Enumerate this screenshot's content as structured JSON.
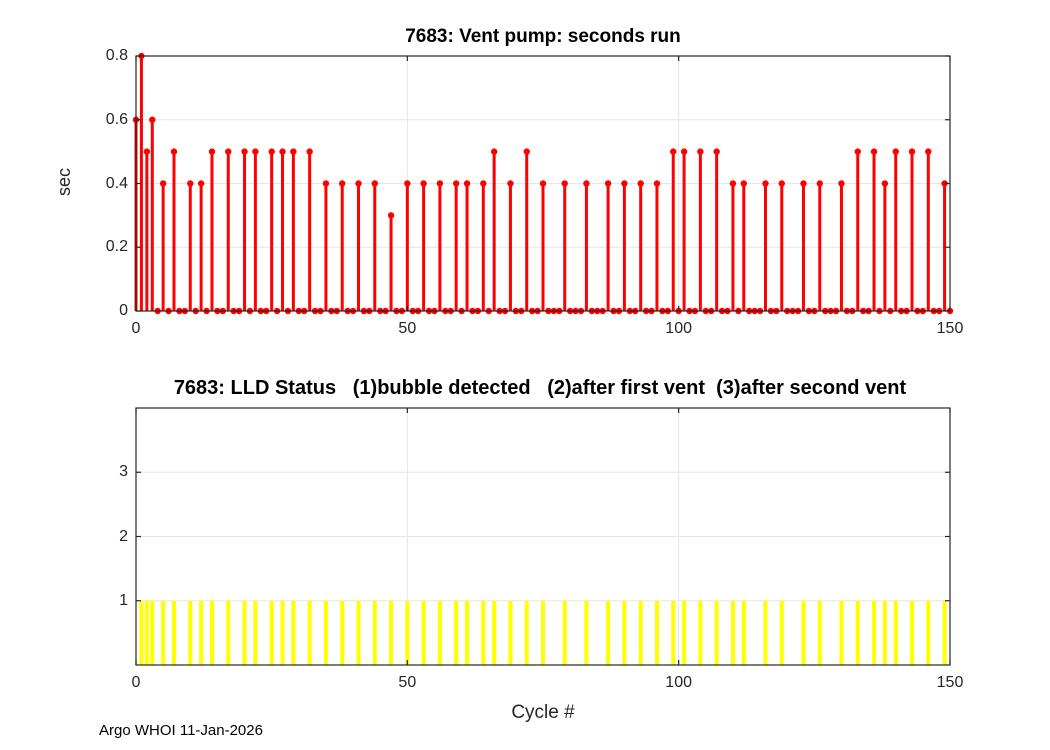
{
  "figure": {
    "background": "#ffffff",
    "footer_credit": "Argo WHOI 11-Jan-2026"
  },
  "style": {
    "axis_color": "#262626",
    "grid_color": "#e6e6e6",
    "tick_label_color": "#262626"
  },
  "chart_data": [
    {
      "id": "vent-pump",
      "type": "stem",
      "title": "7683: Vent pump: seconds run",
      "xlabel": "",
      "ylabel": "sec",
      "xlim": [
        0,
        150
      ],
      "ylim": [
        0,
        0.8
      ],
      "xticks": [
        0,
        50,
        100,
        150
      ],
      "yticks": [
        0,
        0.2,
        0.4,
        0.6,
        0.8
      ],
      "grid": true,
      "legend": "none",
      "color": "#ff0000",
      "x_equals_index": true,
      "y": [
        0.6,
        0.8,
        0.5,
        0.6,
        0,
        0.4,
        0,
        0.5,
        0,
        0,
        0.4,
        0,
        0.4,
        0,
        0.5,
        0,
        0,
        0.5,
        0,
        0,
        0.5,
        0,
        0.5,
        0,
        0,
        0.5,
        0,
        0.5,
        0,
        0.5,
        0,
        0,
        0.5,
        0,
        0,
        0.4,
        0,
        0,
        0.4,
        0,
        0,
        0.4,
        0,
        0,
        0.4,
        0,
        0,
        0.3,
        0,
        0,
        0.4,
        0,
        0,
        0.4,
        0,
        0,
        0.4,
        0,
        0,
        0.4,
        0,
        0.4,
        0,
        0,
        0.4,
        0,
        0.5,
        0,
        0,
        0.4,
        0,
        0,
        0.5,
        0,
        0,
        0.4,
        0,
        0,
        0,
        0.4,
        0,
        0,
        0,
        0.4,
        0,
        0,
        0,
        0.4,
        0,
        0,
        0.4,
        0,
        0,
        0.4,
        0,
        0,
        0.4,
        0,
        0,
        0.5,
        0,
        0.5,
        0,
        0,
        0.5,
        0,
        0,
        0.5,
        0,
        0,
        0.4,
        0,
        0.4,
        0,
        0,
        0,
        0.4,
        0,
        0,
        0.4,
        0,
        0,
        0,
        0.4,
        0,
        0,
        0.4,
        0,
        0,
        0,
        0.4,
        0,
        0,
        0.5,
        0,
        0,
        0.5,
        0,
        0.4,
        0,
        0.5,
        0,
        0,
        0.5,
        0,
        0,
        0.5,
        0,
        0,
        0.4,
        0
      ]
    },
    {
      "id": "lld-status",
      "type": "bar",
      "title": "7683: LLD Status   (1)bubble detected   (2)after first vent  (3)after second vent",
      "xlabel": "Cycle #",
      "ylabel": "",
      "xlim": [
        0,
        150
      ],
      "ylim": [
        0,
        4
      ],
      "xticks": [
        0,
        50,
        100,
        150
      ],
      "yticks": [
        1,
        2,
        3
      ],
      "grid": true,
      "legend": "none",
      "color": "#ffff00",
      "x": [
        1,
        2,
        3,
        5,
        7,
        10,
        12,
        14,
        17,
        20,
        22,
        25,
        27,
        29,
        32,
        35,
        38,
        41,
        44,
        47,
        50,
        53,
        56,
        59,
        61,
        64,
        66,
        69,
        72,
        75,
        79,
        83,
        87,
        90,
        93,
        96,
        99,
        101,
        104,
        107,
        110,
        112,
        116,
        119,
        123,
        126,
        130,
        133,
        136,
        138,
        140,
        143,
        146,
        149
      ],
      "values": [
        1,
        1,
        1,
        1,
        1,
        1,
        1,
        1,
        1,
        1,
        1,
        1,
        1,
        1,
        1,
        1,
        1,
        1,
        1,
        1,
        1,
        1,
        1,
        1,
        1,
        1,
        1,
        1,
        1,
        1,
        1,
        1,
        1,
        1,
        1,
        1,
        1,
        1,
        1,
        1,
        1,
        1,
        1,
        1,
        1,
        1,
        1,
        1,
        1,
        1,
        1,
        1,
        1,
        1
      ]
    }
  ]
}
